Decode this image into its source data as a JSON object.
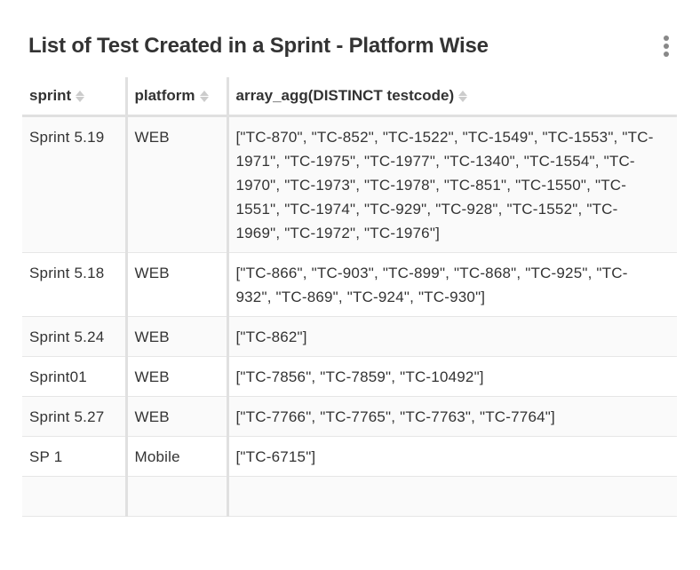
{
  "title": "List of Test Created in a Sprint - Platform Wise",
  "columns": [
    "sprint",
    "platform",
    "array_agg(DISTINCT testcode)"
  ],
  "rows": [
    {
      "sprint": "Sprint 5.19",
      "platform": "WEB",
      "codes": "[\"TC-870\", \"TC-852\", \"TC-1522\", \"TC-1549\", \"TC-1553\", \"TC-1971\", \"TC-1975\", \"TC-1977\", \"TC-1340\", \"TC-1554\", \"TC-1970\", \"TC-1973\", \"TC-1978\", \"TC-851\", \"TC-1550\", \"TC-1551\", \"TC-1974\", \"TC-929\", \"TC-928\", \"TC-1552\", \"TC-1969\", \"TC-1972\", \"TC-1976\"]"
    },
    {
      "sprint": "Sprint 5.18",
      "platform": "WEB",
      "codes": "[\"TC-866\", \"TC-903\", \"TC-899\", \"TC-868\", \"TC-925\", \"TC-932\", \"TC-869\", \"TC-924\", \"TC-930\"]"
    },
    {
      "sprint": "Sprint 5.24",
      "platform": "WEB",
      "codes": "[\"TC-862\"]"
    },
    {
      "sprint": "Sprint01",
      "platform": "WEB",
      "codes": "[\"TC-7856\", \"TC-7859\", \"TC-10492\"]"
    },
    {
      "sprint": "Sprint 5.27",
      "platform": "WEB",
      "codes": "[\"TC-7766\", \"TC-7765\", \"TC-7763\", \"TC-7764\"]"
    },
    {
      "sprint": "SP 1",
      "platform": "Mobile",
      "codes": "[\"TC-6715\"]"
    }
  ],
  "icons": {
    "menu": "more-vertical-icon",
    "sort": "sort-icon"
  },
  "colors": {
    "text": "#333333",
    "border": "#e0e0e0",
    "stripe": "#fafafa"
  }
}
